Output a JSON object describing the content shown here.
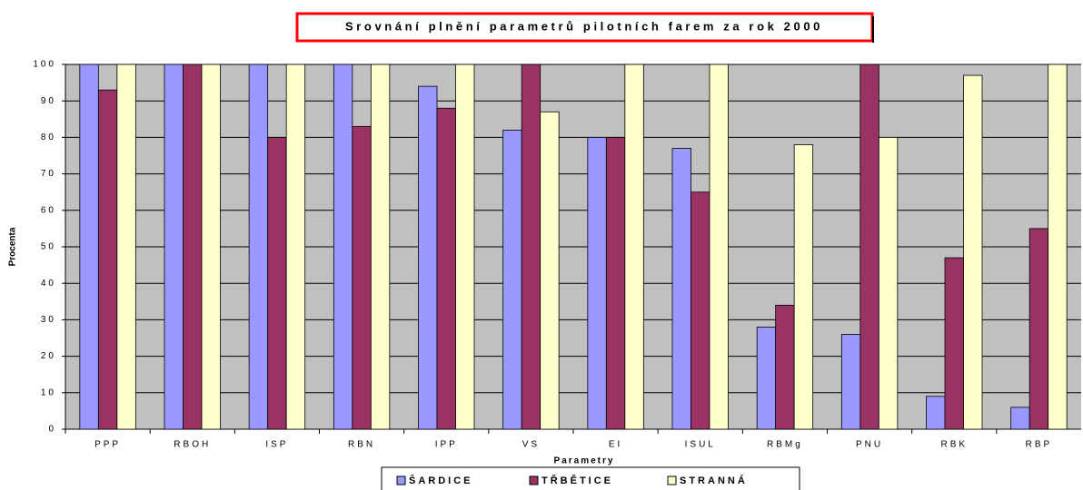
{
  "chart_data": {
    "type": "bar",
    "title": "Srovnání plnění parametrů pilotních farem za rok 2000",
    "x_label": "Parametry",
    "y_label": "Procenta",
    "categories": [
      "PPP",
      "RBOH",
      "ISP",
      "RBN",
      "IPP",
      "VS",
      "EI",
      "ISUL",
      "RBMg",
      "PNU",
      "RBK",
      "RBP"
    ],
    "series": [
      {
        "name": "ŠARDICE",
        "color": "#9999ff",
        "values": [
          100,
          100,
          100,
          100,
          94,
          82,
          80,
          77,
          28,
          26,
          9,
          6
        ]
      },
      {
        "name": "TŘBĚTICE",
        "color": "#993366",
        "values": [
          93,
          100,
          80,
          83,
          88,
          100,
          80,
          65,
          34,
          100,
          47,
          55
        ]
      },
      {
        "name": "STRANNÁ",
        "color": "#ffffcc",
        "values": [
          100,
          100,
          100,
          100,
          100,
          87,
          100,
          100,
          78,
          80,
          97,
          100
        ]
      }
    ],
    "ylim": [
      0,
      100
    ],
    "yticks": [
      0,
      10,
      20,
      30,
      40,
      50,
      60,
      70,
      80,
      90,
      100
    ],
    "grid": true
  }
}
